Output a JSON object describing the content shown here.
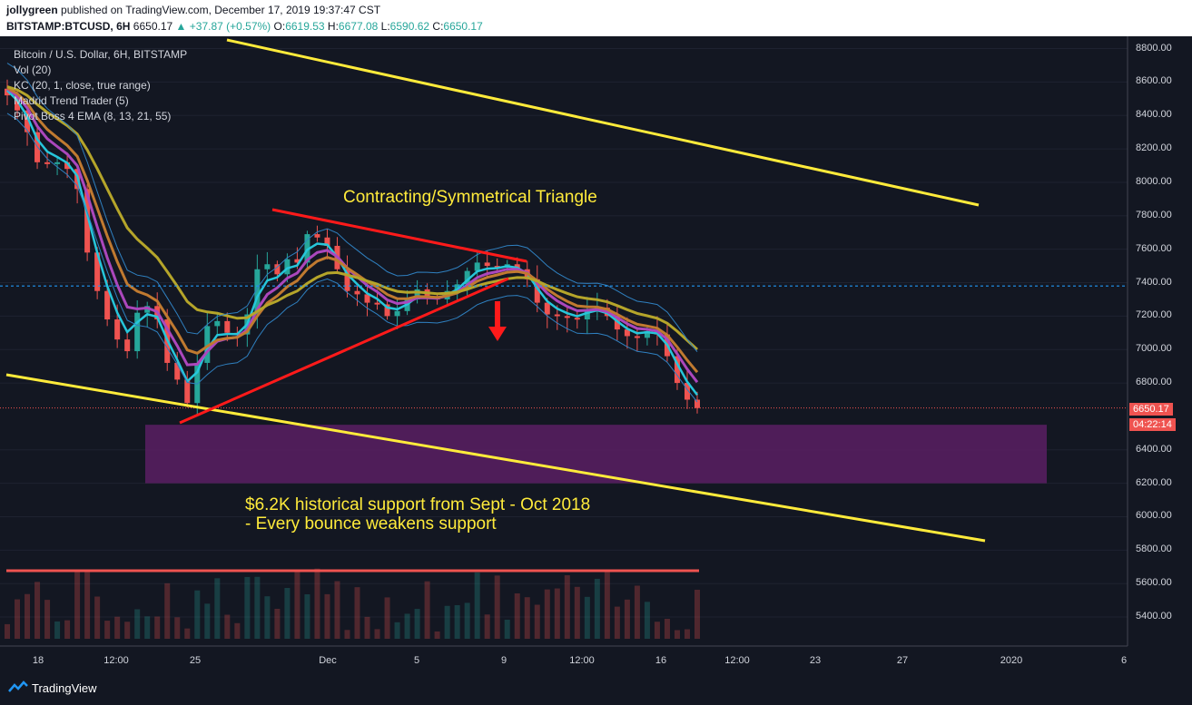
{
  "header": {
    "user": "jollygreen",
    "published": "published on TradingView.com, December 17, 2019 19:37:47 CST",
    "symbol": "BITSTAMP:BTCUSD, 6H",
    "last": "6650.17",
    "change_arrow": "▲",
    "change": "+37.87 (+0.57%)",
    "o_label": "O:",
    "o": "6619.53",
    "h_label": "H:",
    "h": "6677.08",
    "l_label": "L:",
    "l": "6590.62",
    "c_label": "C:",
    "c": "6650.17"
  },
  "legend": {
    "title": "Bitcoin / U.S. Dollar, 6H, BITSTAMP",
    "vol": "Vol (20)",
    "kc": "KC (20, 1, close, true range)",
    "madrid": "Madrid Trend Trader (5)",
    "pivot": "Pivot Boss 4 EMA (8, 13, 21, 55)"
  },
  "annotations": {
    "triangle": "Contracting/Symmetrical Triangle",
    "support_line1": "$6.2K historical support from Sept - Oct 2018",
    "support_line2": "- Every bounce weakens support"
  },
  "price_tag": {
    "value": "6650.17",
    "countdown": "04:22:14"
  },
  "footer": {
    "brand": "TradingView",
    "logo_icon": "tradingview-logo-icon"
  },
  "colors": {
    "background": "#131722",
    "up": "#26a69a",
    "down": "#ef5350",
    "trendline": "#ffeb3b",
    "triangle": "#ff1a1a",
    "support_zone": "#5b1f63",
    "dotted_level": "#2196f3"
  },
  "chart_data": {
    "type": "candlestick",
    "y_ticks": [
      5400,
      5600,
      5800,
      6000,
      6200,
      6400,
      6800,
      7000,
      7200,
      7400,
      7600,
      7800,
      8000,
      8200,
      8400,
      8600,
      8800
    ],
    "y_tick_labels": [
      "5400.00",
      "5600.00",
      "5800.00",
      "6000.00",
      "6200.00",
      "6400.00",
      "6800.00",
      "7000.00",
      "7200.00",
      "7400.00",
      "7600.00",
      "7800.00",
      "8000.00",
      "8200.00",
      "8400.00",
      "8600.00",
      "8800.00"
    ],
    "x_tick_labels": [
      "18",
      "12:00",
      "25",
      "Dec",
      "5",
      "9",
      "12:00",
      "16",
      "12:00",
      "23",
      "27",
      "2020",
      "6"
    ],
    "ylim": [
      5270,
      8830
    ],
    "support_zone": [
      6200,
      6550
    ],
    "dotted_level": 7380,
    "last_price": 6650.17,
    "close_path": [
      8520,
      8430,
      8300,
      8120,
      8110,
      8120,
      8080,
      7960,
      7580,
      7350,
      7180,
      7060,
      6990,
      7220,
      7260,
      7180,
      6920,
      6820,
      6680,
      6920,
      7140,
      7170,
      7100,
      7090,
      7210,
      7480,
      7510,
      7450,
      7540,
      7520,
      7690,
      7670,
      7620,
      7480,
      7350,
      7330,
      7280,
      7270,
      7200,
      7230,
      7300,
      7360,
      7310,
      7300,
      7350,
      7390,
      7470,
      7520,
      7500,
      7490,
      7510,
      7480,
      7420,
      7280,
      7210,
      7200,
      7190,
      7180,
      7240,
      7250,
      7200,
      7120,
      7080,
      7070,
      7110,
      7090,
      6960,
      6800,
      6700,
      6650
    ]
  }
}
